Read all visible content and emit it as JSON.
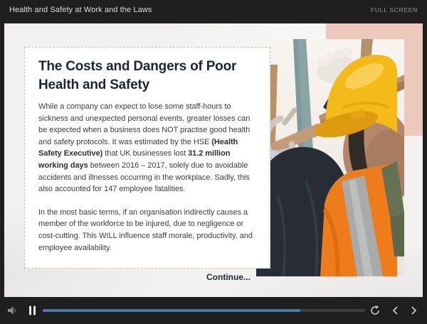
{
  "topbar": {
    "title": "Health and Safety at Work and the Laws",
    "fullscreen_label": "FULL SCREEN"
  },
  "slide": {
    "title": "The Costs and Dangers of Poor Health and Safety",
    "title_line1": "The Costs and Dangers of Poor",
    "title_line2": "Health and Safety",
    "paragraph1": {
      "seg1": "While a company can expect to lose some staff-hours to sickness and unexpected personal events, greater losses can be expected when a business does NOT practise good health and safety protocols. It was estimated by the HSE ",
      "bold1": "(Health Safety Executive)",
      "seg2": " that UK businesses lost ",
      "bold2": "31.2 million working days",
      "seg3": " between 2016 – 2017, solely due to avoidable accidents and illnesses occurring in the workplace. Sadly, this also accounted for 147 employee fatalities."
    },
    "paragraph2": "In the most basic terms, if an organisation indirectly causes a member of the workforce to be injured, due to negligence or cost-cutting. This WILL influence staff morale, productivity, and employee availability.",
    "continue_label": "Continue...",
    "image_alt": "construction-worker-in-yellow-hard-hat-on-scaffolding"
  },
  "player_controls": {
    "volume_icon": "speaker",
    "pause_icon": "pause",
    "replay_icon": "circular-arrow",
    "previous_icon": "chevron-left",
    "next_icon": "chevron-right",
    "progress_percent": 80
  },
  "colors": {
    "chrome": "#1f1f1f",
    "stage_bg": "#f2f1f0",
    "accent_blue": "#4a7aa9",
    "pink_accent": "#ecc9bc",
    "title_text": "#1b2733",
    "body_text": "#3d3d3d"
  }
}
